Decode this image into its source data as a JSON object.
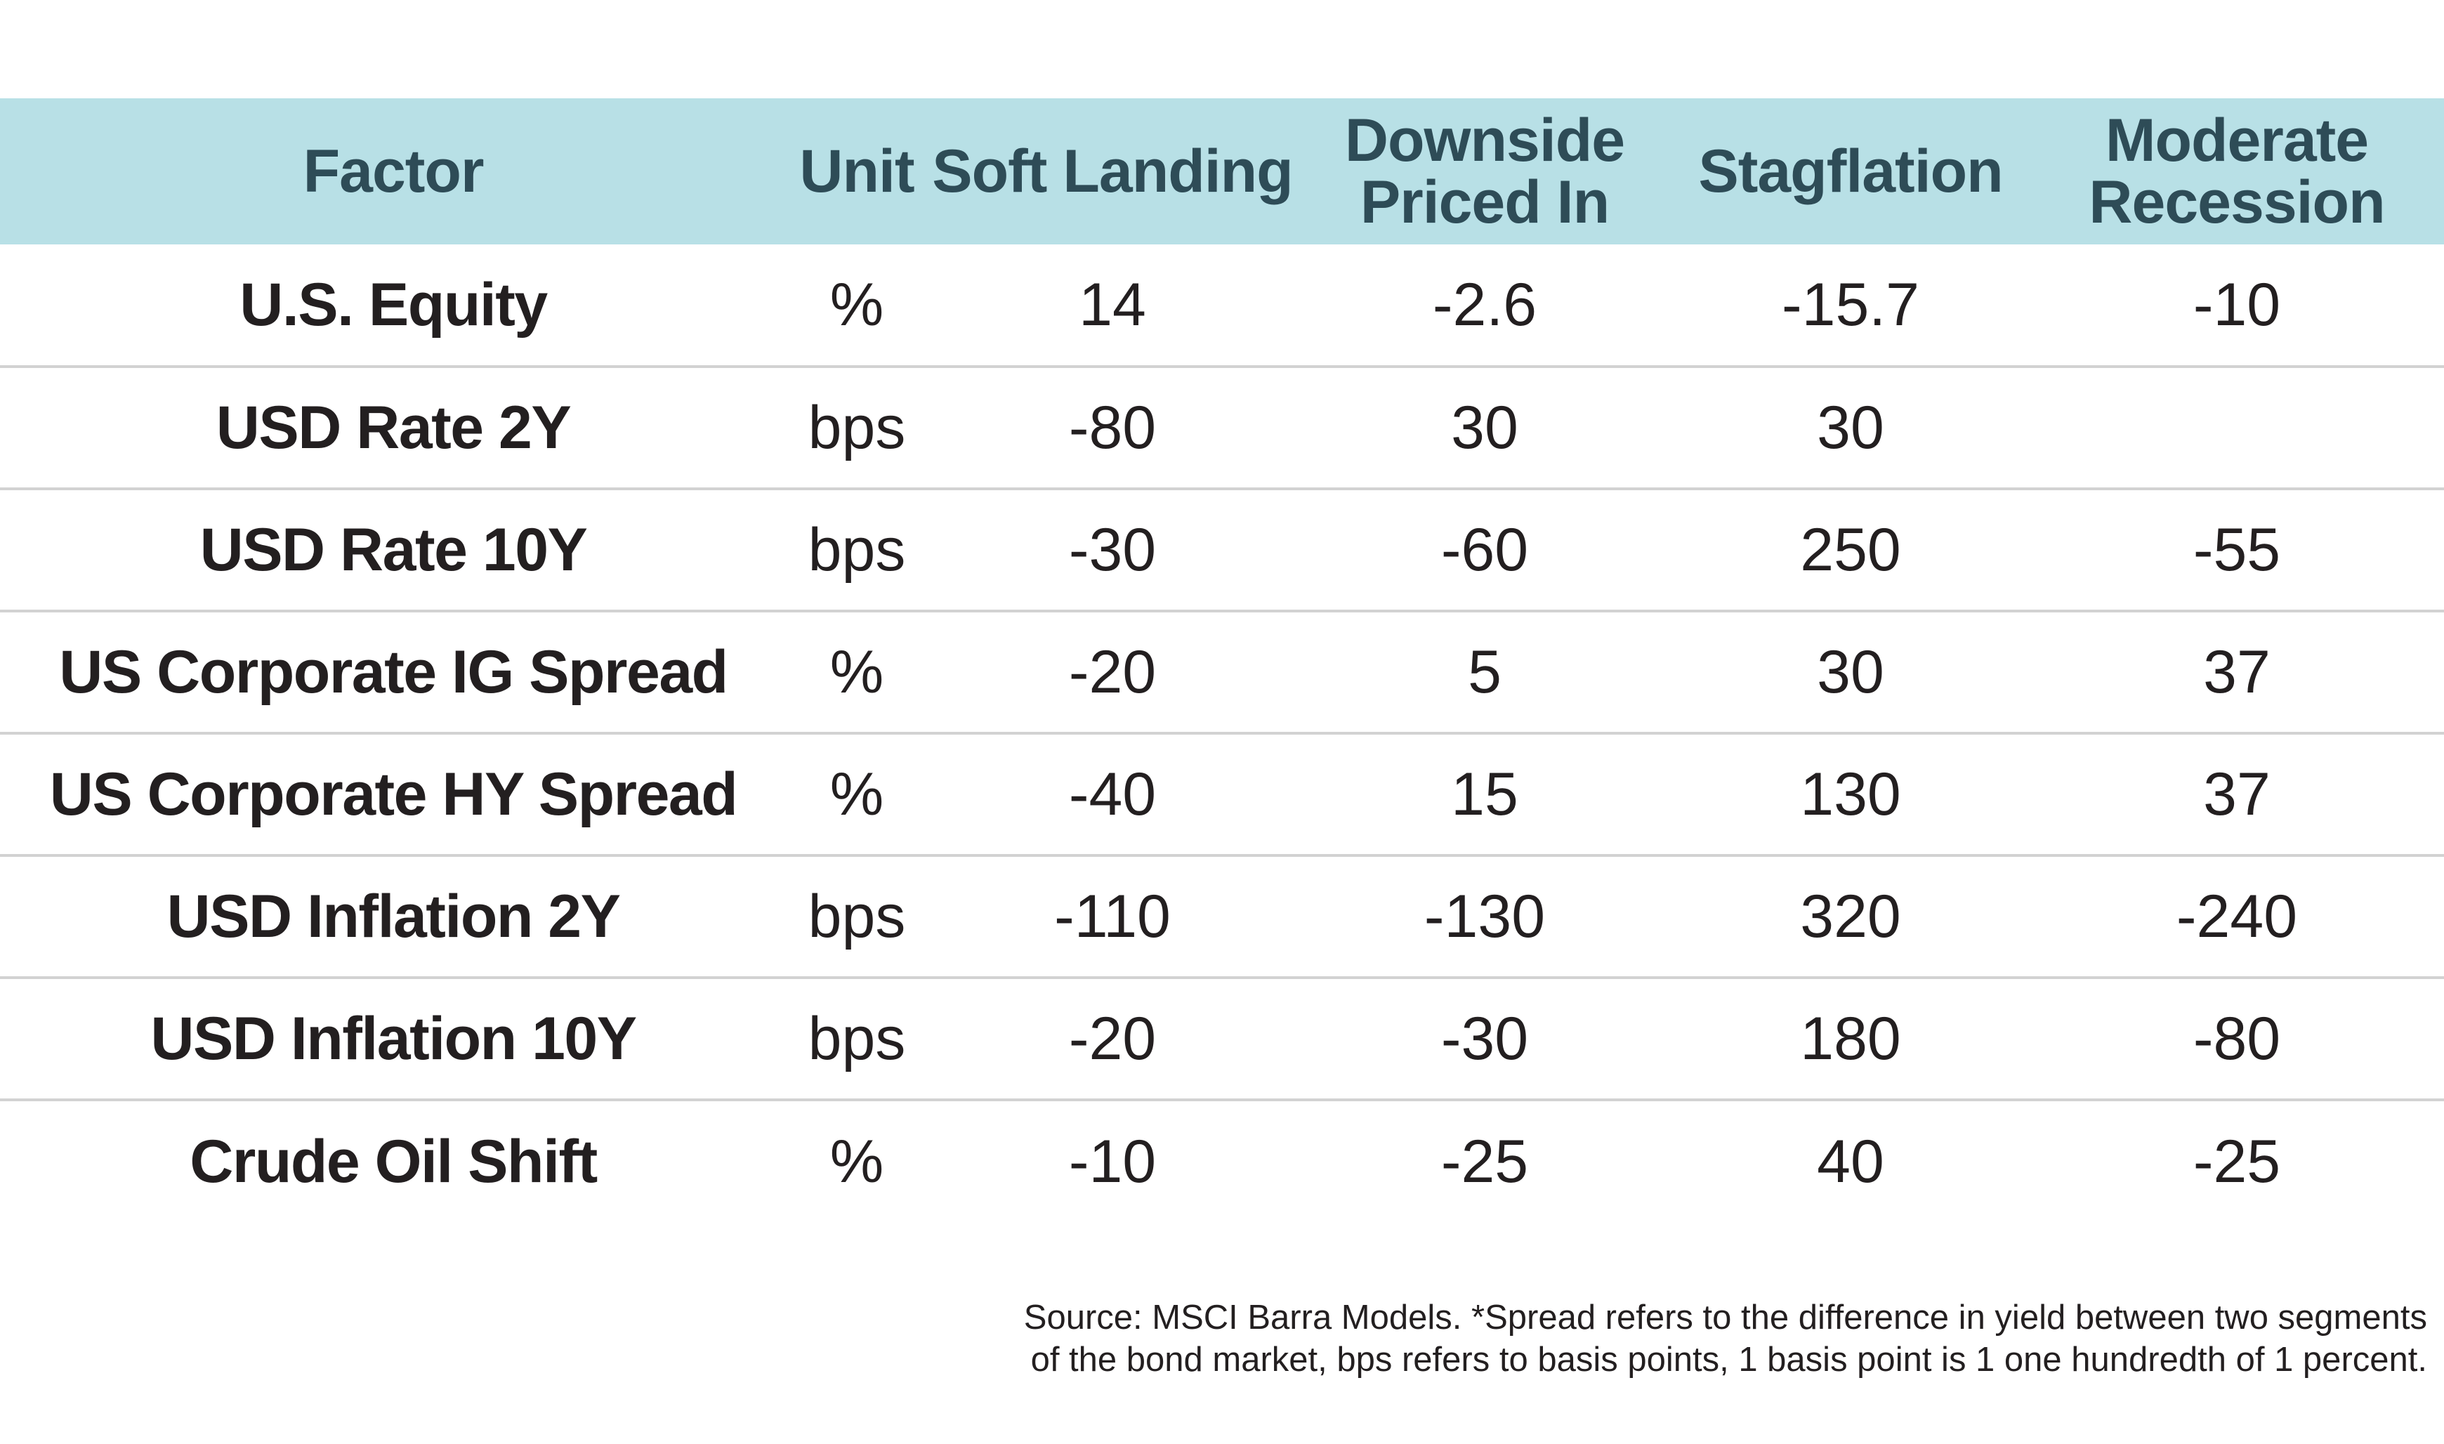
{
  "table": {
    "headers": [
      {
        "lines": [
          "Factor"
        ]
      },
      {
        "lines": [
          "Unit"
        ]
      },
      {
        "lines": [
          "Soft Landing"
        ]
      },
      {
        "lines": [
          "Downside",
          "Priced In"
        ]
      },
      {
        "lines": [
          "Stagflation"
        ]
      },
      {
        "lines": [
          "Moderate",
          "Recession"
        ]
      }
    ],
    "rows": [
      {
        "factor": "U.S. Equity",
        "unit": "%",
        "soft_landing": "14",
        "downside_priced_in": "-2.6",
        "stagflation": "-15.7",
        "moderate_recession": "-10"
      },
      {
        "factor": "USD Rate 2Y",
        "unit": "bps",
        "soft_landing": "-80",
        "downside_priced_in": "30",
        "stagflation": "30",
        "moderate_recession": ""
      },
      {
        "factor": "USD Rate 10Y",
        "unit": "bps",
        "soft_landing": "-30",
        "downside_priced_in": "-60",
        "stagflation": "250",
        "moderate_recession": "-55"
      },
      {
        "factor": "US Corporate IG Spread",
        "unit": "%",
        "soft_landing": "-20",
        "downside_priced_in": "5",
        "stagflation": "30",
        "moderate_recession": "37"
      },
      {
        "factor": "US Corporate HY Spread",
        "unit": "%",
        "soft_landing": "-40",
        "downside_priced_in": "15",
        "stagflation": "130",
        "moderate_recession": "37"
      },
      {
        "factor": "USD Inflation 2Y",
        "unit": "bps",
        "soft_landing": "-110",
        "downside_priced_in": "-130",
        "stagflation": "320",
        "moderate_recession": "-240"
      },
      {
        "factor": "USD Inflation 10Y",
        "unit": "bps",
        "soft_landing": "-20",
        "downside_priced_in": "-30",
        "stagflation": "180",
        "moderate_recession": "-80"
      },
      {
        "factor": "Crude Oil Shift",
        "unit": "%",
        "soft_landing": "-10",
        "downside_priced_in": "-25",
        "stagflation": "40",
        "moderate_recession": "-25"
      }
    ]
  },
  "source_note": {
    "line1": "Source: MSCI Barra Models. *Spread refers to the difference in yield between two segments",
    "line2": "of the bond market, bps refers to basis points, 1 basis point is 1 one hundredth of 1 percent."
  },
  "colors": {
    "header_background": "#b8e0e6",
    "header_text": "#2e4c57",
    "body_text": "#231f20",
    "row_divider": "#d2d2d2"
  }
}
